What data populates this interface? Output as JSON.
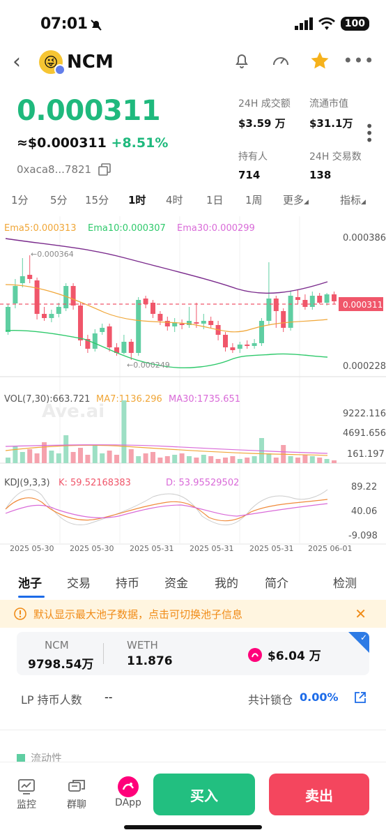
{
  "status": {
    "time": "07:01",
    "battery": "100"
  },
  "header": {
    "token": "NCM"
  },
  "price": {
    "main": "0.000311",
    "usd": "≈$0.000311",
    "change": "+8.51%",
    "address": "0xaca8...7821"
  },
  "stats": [
    {
      "label": "24H 成交额",
      "value": "$3.59 万"
    },
    {
      "label": "流通市值",
      "value": "$31.1万"
    },
    {
      "label": "持有人",
      "value": "714"
    },
    {
      "label": "24H 交易数",
      "value": "138"
    }
  ],
  "timeframes": [
    "1分",
    "5分",
    "15分",
    "1时",
    "4时",
    "1日",
    "1周",
    "更多",
    "指标"
  ],
  "active_timeframe": "1时",
  "chart_data": {
    "type": "candlestick",
    "ema_legend": {
      "ema5": "Ema5:0.000313",
      "ema10": "Ema10:0.000307",
      "ema30": "Ema30:0.000299"
    },
    "price_axis": [
      "0.000386",
      "0.000311",
      "0.000228"
    ],
    "high_marker": "←0.000364",
    "low_marker": "←0.000249",
    "vol_legend": {
      "vol": "VOL(7,30):663.721",
      "ma7": "MA7:1136.296",
      "ma30": "MA30:1735.651"
    },
    "vol_axis": [
      "9222.116",
      "4691.656",
      "161.197"
    ],
    "kdj_legend": {
      "kdj": "KDJ(9,3,3)",
      "k": "K: 59.52168383",
      "d": "D: 53.95529502"
    },
    "kdj_axis": [
      "89.22",
      "40.06",
      "-9.098"
    ],
    "x_labels": [
      "2025 05-30",
      "2025 05-30",
      "2025 05-31",
      "2025 05-31",
      "2025 05-31",
      "2025 06-01"
    ],
    "watermark": "Ave.ai",
    "colors": {
      "up": "#5fcea2",
      "down": "#f0566a",
      "ema5": "#f0a637",
      "ema10": "#2ec96b",
      "ema30": "#7a2a8c"
    }
  },
  "tabs": [
    "池子",
    "交易",
    "持币",
    "资金",
    "我的",
    "简介",
    "检测"
  ],
  "notice": "默认显示最大池子数据，点击可切换池子信息",
  "pool": {
    "token_a": "NCM",
    "token_a_amount": "9798.54万",
    "token_b": "WETH",
    "token_b_amount": "11.876",
    "liquidity_usd": "$6.04 万"
  },
  "lp": {
    "holders_label": "LP 持币人数",
    "holders_value": "--",
    "locked_label": "共计锁仓",
    "locked_value": "0.00%"
  },
  "section_label": "流动性",
  "bottom_nav": [
    {
      "label": "监控",
      "icon": "monitor-icon"
    },
    {
      "label": "群聊",
      "icon": "chat-icon"
    },
    {
      "label": "DApp",
      "icon": "dapp-icon"
    }
  ],
  "buy_label": "买入",
  "sell_label": "卖出"
}
